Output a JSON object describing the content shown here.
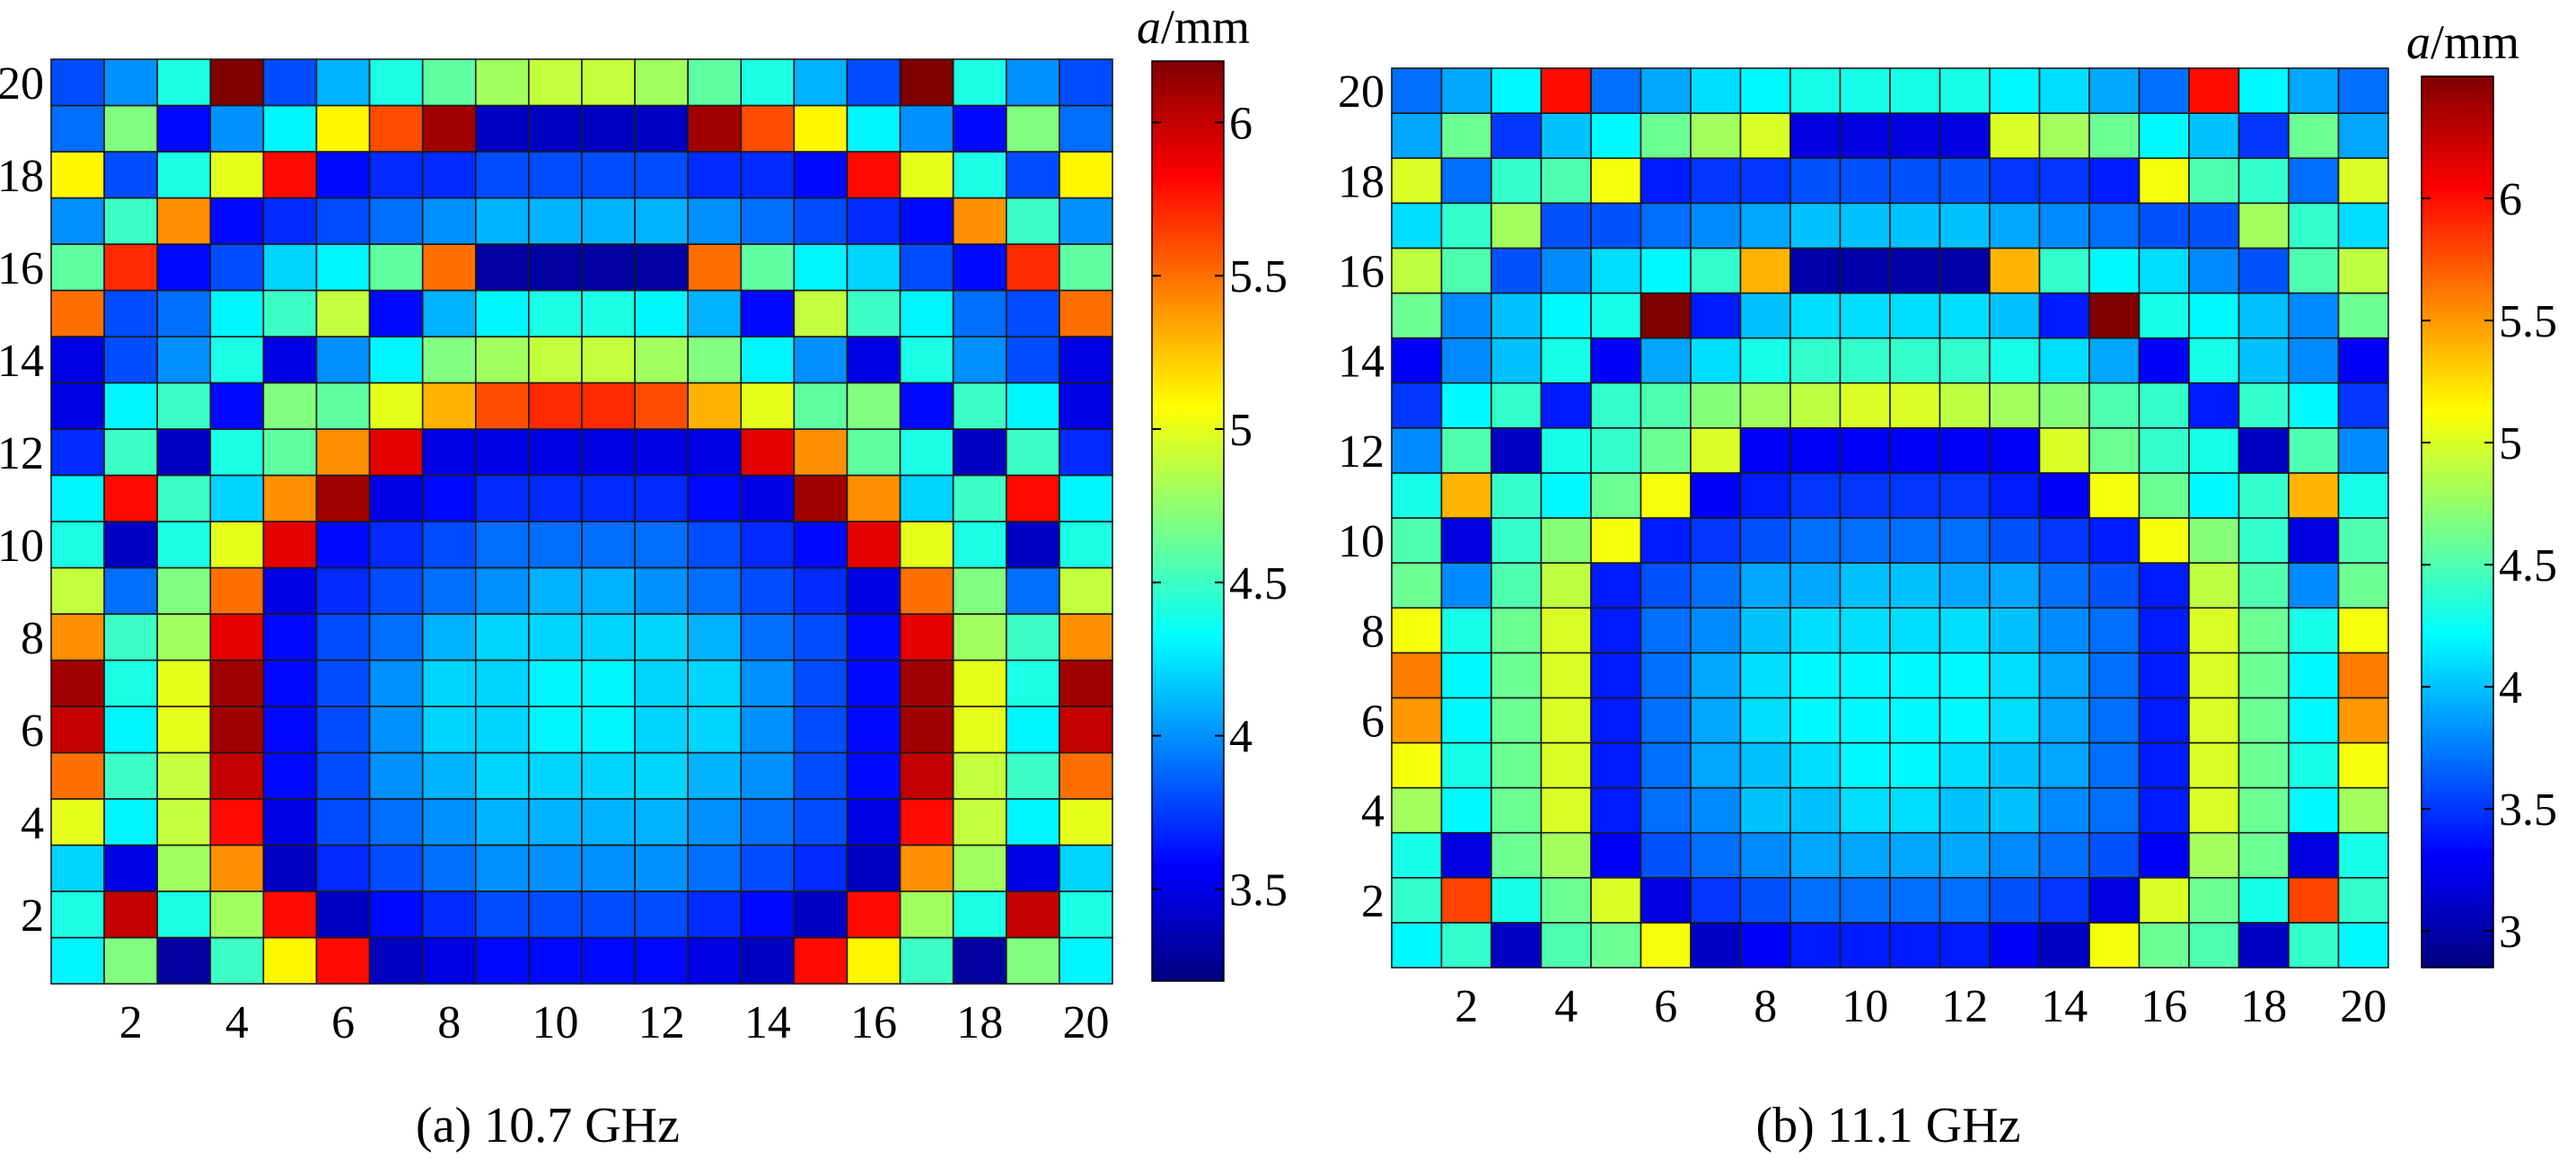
{
  "chart_data": [
    {
      "type": "heatmap",
      "caption": "(a) 10.7 GHz",
      "colorbar_label_italic": "a",
      "colorbar_label_unit": "/mm",
      "colorbar_range": [
        3.2,
        6.2
      ],
      "colorbar_ticks": [
        3.5,
        4,
        4.5,
        5,
        5.5,
        6
      ],
      "xticks": [
        2,
        4,
        6,
        8,
        10,
        12,
        14,
        16,
        18,
        20
      ],
      "yticks": [
        2,
        4,
        6,
        8,
        10,
        12,
        14,
        16,
        18,
        20
      ],
      "z": [
        [
          4.3,
          4.7,
          3.3,
          4.5,
          5.1,
          5.8,
          3.4,
          3.5,
          3.6,
          3.6,
          3.6,
          3.6,
          3.5,
          3.4,
          5.8,
          5.1,
          4.5,
          3.3,
          4.7,
          4.3
        ],
        [
          4.4,
          6.0,
          4.4,
          4.8,
          5.8,
          3.4,
          3.6,
          3.7,
          3.8,
          3.8,
          3.8,
          3.8,
          3.7,
          3.6,
          3.4,
          5.8,
          4.8,
          4.4,
          6.0,
          4.4
        ],
        [
          4.2,
          3.5,
          4.8,
          5.4,
          3.4,
          3.7,
          3.8,
          3.9,
          4.0,
          4.0,
          4.0,
          4.0,
          3.9,
          3.8,
          3.7,
          3.4,
          5.4,
          4.8,
          3.5,
          4.2
        ],
        [
          5.0,
          4.3,
          4.9,
          5.8,
          3.5,
          3.8,
          3.9,
          4.0,
          4.1,
          4.1,
          4.1,
          4.1,
          4.0,
          3.9,
          3.8,
          3.5,
          5.8,
          4.9,
          4.3,
          5.0
        ],
        [
          5.5,
          4.5,
          4.9,
          6.0,
          3.6,
          3.8,
          4.0,
          4.1,
          4.2,
          4.2,
          4.2,
          4.2,
          4.1,
          4.0,
          3.8,
          3.6,
          6.0,
          4.9,
          4.5,
          5.5
        ],
        [
          6.0,
          4.3,
          5.0,
          6.1,
          3.6,
          3.8,
          4.0,
          4.2,
          4.2,
          4.3,
          4.3,
          4.2,
          4.2,
          4.0,
          3.8,
          3.6,
          6.1,
          5.0,
          4.3,
          6.0
        ],
        [
          6.1,
          4.4,
          5.0,
          6.1,
          3.6,
          3.8,
          4.0,
          4.2,
          4.2,
          4.3,
          4.3,
          4.2,
          4.2,
          4.0,
          3.8,
          3.6,
          6.1,
          5.0,
          4.4,
          6.1
        ],
        [
          5.4,
          4.5,
          4.8,
          5.9,
          3.6,
          3.8,
          3.9,
          4.1,
          4.2,
          4.2,
          4.2,
          4.2,
          4.1,
          3.9,
          3.8,
          3.6,
          5.9,
          4.8,
          4.5,
          5.4
        ],
        [
          4.9,
          3.9,
          4.7,
          5.5,
          3.5,
          3.7,
          3.8,
          3.9,
          4.0,
          4.1,
          4.1,
          4.0,
          3.9,
          3.8,
          3.7,
          3.5,
          5.5,
          4.7,
          3.9,
          4.9
        ],
        [
          4.4,
          3.4,
          4.4,
          5.0,
          5.9,
          3.6,
          3.7,
          3.8,
          3.9,
          3.9,
          3.9,
          3.9,
          3.8,
          3.7,
          3.6,
          5.9,
          5.0,
          4.4,
          3.4,
          4.4
        ],
        [
          4.3,
          5.8,
          4.5,
          4.2,
          5.4,
          6.1,
          3.5,
          3.6,
          3.7,
          3.7,
          3.7,
          3.7,
          3.6,
          3.5,
          6.1,
          5.4,
          4.2,
          4.5,
          5.8,
          4.3
        ],
        [
          3.7,
          4.5,
          3.4,
          4.4,
          4.6,
          5.4,
          5.9,
          3.5,
          3.5,
          3.5,
          3.5,
          3.5,
          3.5,
          5.9,
          5.4,
          4.6,
          4.4,
          3.4,
          4.5,
          3.7
        ],
        [
          3.5,
          4.3,
          4.5,
          3.6,
          4.7,
          4.6,
          5.0,
          5.3,
          5.6,
          5.7,
          5.7,
          5.6,
          5.3,
          5.0,
          4.6,
          4.7,
          3.6,
          4.5,
          4.3,
          3.5
        ],
        [
          3.5,
          3.8,
          4.0,
          4.4,
          3.5,
          4.0,
          4.3,
          4.7,
          4.8,
          4.9,
          4.9,
          4.8,
          4.7,
          4.3,
          4.0,
          3.5,
          4.4,
          4.0,
          3.8,
          3.5
        ],
        [
          5.5,
          3.8,
          3.9,
          4.3,
          4.5,
          4.9,
          3.6,
          4.1,
          4.3,
          4.4,
          4.4,
          4.3,
          4.1,
          3.6,
          4.9,
          4.5,
          4.3,
          3.9,
          3.8,
          5.5
        ],
        [
          4.6,
          5.7,
          3.6,
          3.8,
          4.2,
          4.3,
          4.6,
          5.5,
          3.3,
          3.3,
          3.3,
          3.3,
          5.5,
          4.6,
          4.3,
          4.2,
          3.8,
          3.6,
          5.7,
          4.6
        ],
        [
          4.0,
          4.5,
          5.4,
          3.6,
          3.7,
          3.8,
          3.9,
          4.0,
          4.1,
          4.1,
          4.1,
          4.1,
          4.0,
          3.9,
          3.8,
          3.7,
          3.6,
          5.4,
          4.5,
          4.0
        ],
        [
          5.1,
          3.8,
          4.4,
          5.0,
          5.8,
          3.6,
          3.7,
          3.7,
          3.8,
          3.8,
          3.8,
          3.8,
          3.7,
          3.7,
          3.6,
          5.8,
          5.0,
          4.4,
          3.8,
          5.1
        ],
        [
          3.9,
          4.7,
          3.6,
          4.0,
          4.3,
          5.1,
          5.6,
          6.1,
          3.4,
          3.4,
          3.4,
          3.4,
          6.1,
          5.6,
          5.1,
          4.3,
          4.0,
          3.6,
          4.7,
          3.9
        ],
        [
          3.8,
          4.0,
          4.4,
          6.2,
          3.8,
          4.1,
          4.4,
          4.6,
          4.8,
          4.9,
          4.9,
          4.8,
          4.6,
          4.4,
          4.1,
          3.8,
          6.2,
          4.4,
          4.0,
          3.8
        ]
      ]
    },
    {
      "type": "heatmap",
      "caption": "(b) 11.1 GHz",
      "colorbar_label_italic": "a",
      "colorbar_label_unit": "/mm",
      "colorbar_range": [
        2.85,
        6.5
      ],
      "colorbar_ticks": [
        3,
        3.5,
        4,
        4.5,
        5,
        5.5,
        6
      ],
      "xticks": [
        2,
        4,
        6,
        8,
        10,
        12,
        14,
        16,
        18,
        20
      ],
      "yticks": [
        2,
        4,
        6,
        8,
        10,
        12,
        14,
        16,
        18,
        20
      ],
      "z": [
        [
          4.2,
          4.4,
          3.1,
          4.5,
          4.6,
          5.1,
          3.1,
          3.3,
          3.4,
          3.4,
          3.4,
          3.4,
          3.3,
          3.1,
          5.1,
          4.6,
          4.5,
          3.1,
          4.4,
          4.2
        ],
        [
          4.4,
          5.8,
          4.3,
          4.6,
          5.0,
          3.2,
          3.5,
          3.6,
          3.7,
          3.7,
          3.7,
          3.7,
          3.6,
          3.5,
          3.2,
          5.0,
          4.6,
          4.3,
          5.8,
          4.4
        ],
        [
          4.3,
          3.2,
          4.6,
          4.8,
          3.3,
          3.6,
          3.7,
          3.8,
          3.9,
          3.9,
          3.9,
          3.9,
          3.8,
          3.7,
          3.6,
          3.3,
          4.8,
          4.6,
          3.2,
          4.3
        ],
        [
          4.8,
          4.2,
          4.6,
          5.0,
          3.4,
          3.7,
          3.8,
          4.0,
          4.0,
          4.1,
          4.1,
          4.0,
          4.0,
          3.8,
          3.7,
          3.4,
          5.0,
          4.6,
          4.2,
          4.8
        ],
        [
          5.1,
          4.3,
          4.6,
          5.0,
          3.4,
          3.7,
          3.9,
          4.0,
          4.1,
          4.2,
          4.2,
          4.1,
          4.0,
          3.9,
          3.7,
          3.4,
          5.0,
          4.6,
          4.3,
          5.1
        ],
        [
          5.5,
          4.2,
          4.6,
          5.0,
          3.4,
          3.7,
          3.9,
          4.1,
          4.2,
          4.2,
          4.2,
          4.2,
          4.1,
          3.9,
          3.7,
          3.4,
          5.0,
          4.6,
          4.2,
          5.5
        ],
        [
          5.6,
          4.2,
          4.6,
          5.0,
          3.4,
          3.7,
          3.9,
          4.1,
          4.2,
          4.2,
          4.2,
          4.2,
          4.1,
          3.9,
          3.7,
          3.4,
          5.0,
          4.6,
          4.2,
          5.6
        ],
        [
          5.1,
          4.3,
          4.6,
          5.0,
          3.4,
          3.7,
          3.8,
          4.0,
          4.1,
          4.1,
          4.1,
          4.1,
          4.0,
          3.8,
          3.7,
          3.4,
          5.0,
          4.6,
          4.3,
          5.1
        ],
        [
          4.6,
          3.8,
          4.5,
          4.9,
          3.4,
          3.6,
          3.7,
          3.9,
          3.9,
          4.0,
          4.0,
          3.9,
          3.9,
          3.7,
          3.6,
          3.4,
          4.9,
          4.5,
          3.8,
          4.6
        ],
        [
          4.5,
          3.2,
          4.4,
          4.7,
          5.1,
          3.4,
          3.5,
          3.6,
          3.7,
          3.7,
          3.7,
          3.7,
          3.6,
          3.5,
          3.4,
          5.1,
          4.7,
          4.4,
          3.2,
          4.5
        ],
        [
          4.3,
          5.4,
          4.4,
          4.2,
          4.6,
          5.1,
          3.3,
          3.4,
          3.5,
          3.5,
          3.5,
          3.5,
          3.4,
          3.3,
          5.1,
          4.6,
          4.2,
          4.4,
          5.4,
          4.3
        ],
        [
          3.8,
          4.5,
          3.1,
          4.3,
          4.4,
          4.6,
          5.0,
          3.3,
          3.3,
          3.3,
          3.3,
          3.3,
          3.3,
          5.0,
          4.6,
          4.4,
          4.3,
          3.1,
          4.5,
          3.8
        ],
        [
          3.5,
          4.2,
          4.4,
          3.4,
          4.4,
          4.5,
          4.7,
          4.8,
          4.9,
          5.0,
          5.0,
          4.9,
          4.8,
          4.7,
          4.5,
          4.4,
          3.4,
          4.4,
          4.2,
          3.5
        ],
        [
          3.3,
          3.8,
          4.0,
          4.3,
          3.3,
          3.9,
          4.1,
          4.3,
          4.4,
          4.4,
          4.4,
          4.4,
          4.3,
          4.1,
          3.9,
          3.3,
          4.3,
          4.0,
          3.8,
          3.3
        ],
        [
          4.6,
          3.8,
          4.0,
          4.2,
          4.3,
          6.5,
          3.4,
          4.0,
          4.1,
          4.1,
          4.1,
          4.1,
          4.0,
          3.4,
          6.5,
          4.3,
          4.2,
          4.0,
          3.8,
          4.6
        ],
        [
          4.9,
          4.5,
          3.6,
          3.8,
          4.1,
          4.2,
          4.4,
          5.4,
          3.0,
          3.0,
          3.0,
          3.0,
          5.4,
          4.4,
          4.2,
          4.1,
          3.8,
          3.6,
          4.5,
          4.9
        ],
        [
          4.1,
          4.4,
          4.8,
          3.6,
          3.6,
          3.7,
          3.8,
          3.9,
          4.0,
          4.0,
          4.0,
          4.0,
          3.9,
          3.8,
          3.7,
          3.6,
          3.6,
          4.8,
          4.4,
          4.1
        ],
        [
          5.0,
          3.7,
          4.4,
          4.5,
          5.1,
          3.4,
          3.5,
          3.5,
          3.6,
          3.6,
          3.6,
          3.6,
          3.5,
          3.5,
          3.4,
          5.1,
          4.5,
          4.4,
          3.7,
          5.0
        ],
        [
          3.9,
          4.6,
          3.5,
          4.0,
          4.2,
          4.6,
          4.8,
          5.0,
          3.2,
          3.2,
          3.2,
          3.2,
          5.0,
          4.8,
          4.6,
          4.2,
          4.0,
          3.5,
          4.6,
          3.9
        ],
        [
          3.7,
          3.9,
          4.2,
          6.0,
          3.7,
          3.9,
          4.1,
          4.2,
          4.3,
          4.3,
          4.3,
          4.3,
          4.2,
          4.1,
          3.9,
          3.7,
          6.0,
          4.2,
          3.9,
          3.7
        ]
      ]
    }
  ]
}
